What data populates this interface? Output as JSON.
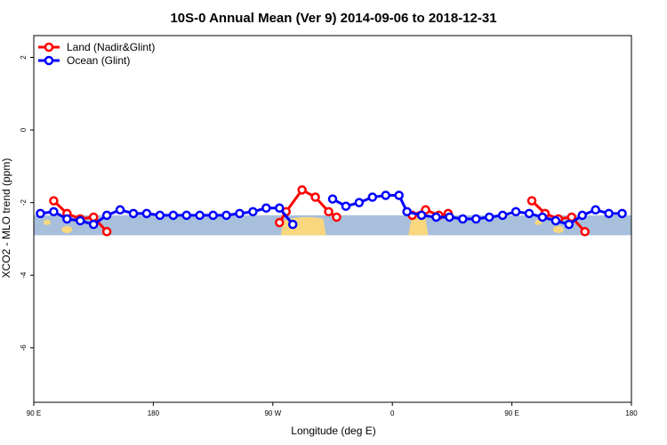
{
  "chart_data": {
    "type": "line",
    "title": "10S-0 Annual Mean (Ver 9)   2014-09-06 to 2018-12-31",
    "xlabel": "Longitude (deg E)",
    "ylabel": "XCO2 - MLO trend (ppm)",
    "xlim": [
      90,
      540
    ],
    "ylim": [
      -7.5,
      2.6
    ],
    "x_ticks": [
      {
        "value": 90,
        "label": "90 E"
      },
      {
        "value": 180,
        "label": "180"
      },
      {
        "value": 270,
        "label": "90 W"
      },
      {
        "value": 360,
        "label": "0"
      },
      {
        "value": 450,
        "label": "90 E"
      },
      {
        "value": 540,
        "label": "180"
      }
    ],
    "y_ticks": [
      {
        "value": 2,
        "label": "2"
      },
      {
        "value": 0,
        "label": "0"
      },
      {
        "value": -2,
        "label": "-2"
      },
      {
        "value": -4,
        "label": "-4"
      },
      {
        "value": -6,
        "label": "-6"
      }
    ],
    "map_band": {
      "y_top": -2.35,
      "y_bottom": -2.9,
      "ocean_color": "#a8bfdc",
      "land_color": "#f9d77e"
    },
    "legend": {
      "position": "top-left"
    },
    "series": [
      {
        "name": "Land (Nadir&Glint)",
        "color": "#ff0000",
        "segments": [
          [
            [
              105,
              -1.95
            ],
            [
              115,
              -2.3
            ],
            [
              125,
              -2.45
            ],
            [
              135,
              -2.4
            ],
            [
              145,
              -2.8
            ]
          ],
          [
            [
              275,
              -2.55
            ],
            [
              280,
              -2.25
            ],
            [
              292,
              -1.65
            ],
            [
              302,
              -1.85
            ],
            [
              312,
              -2.25
            ],
            [
              318,
              -2.4
            ]
          ],
          [
            [
              375,
              -2.35
            ],
            [
              385,
              -2.2
            ],
            [
              395,
              -2.35
            ],
            [
              402,
              -2.3
            ]
          ],
          [
            [
              465,
              -1.95
            ],
            [
              475,
              -2.3
            ],
            [
              485,
              -2.45
            ],
            [
              495,
              -2.4
            ],
            [
              505,
              -2.8
            ]
          ]
        ]
      },
      {
        "name": "Ocean (Glint)",
        "color": "#0000ff",
        "segments": [
          [
            [
              95,
              -2.3
            ],
            [
              105,
              -2.25
            ],
            [
              115,
              -2.45
            ],
            [
              125,
              -2.5
            ],
            [
              135,
              -2.6
            ],
            [
              145,
              -2.35
            ],
            [
              155,
              -2.2
            ],
            [
              165,
              -2.3
            ],
            [
              175,
              -2.3
            ],
            [
              185,
              -2.35
            ],
            [
              195,
              -2.35
            ],
            [
              205,
              -2.35
            ],
            [
              215,
              -2.35
            ],
            [
              225,
              -2.35
            ],
            [
              235,
              -2.35
            ],
            [
              245,
              -2.3
            ],
            [
              255,
              -2.25
            ],
            [
              265,
              -2.15
            ],
            [
              275,
              -2.15
            ],
            [
              285,
              -2.6
            ]
          ],
          [
            [
              315,
              -1.9
            ],
            [
              325,
              -2.1
            ],
            [
              335,
              -2.0
            ],
            [
              345,
              -1.85
            ],
            [
              355,
              -1.8
            ],
            [
              365,
              -1.8
            ],
            [
              371,
              -2.25
            ],
            [
              382,
              -2.35
            ],
            [
              393,
              -2.4
            ],
            [
              403,
              -2.4
            ],
            [
              413,
              -2.45
            ],
            [
              423,
              -2.45
            ],
            [
              433,
              -2.4
            ],
            [
              443,
              -2.35
            ],
            [
              453,
              -2.25
            ],
            [
              463,
              -2.3
            ],
            [
              473,
              -2.4
            ],
            [
              483,
              -2.5
            ],
            [
              493,
              -2.6
            ],
            [
              503,
              -2.35
            ],
            [
              513,
              -2.2
            ],
            [
              523,
              -2.3
            ],
            [
              533,
              -2.3
            ]
          ]
        ]
      }
    ]
  }
}
